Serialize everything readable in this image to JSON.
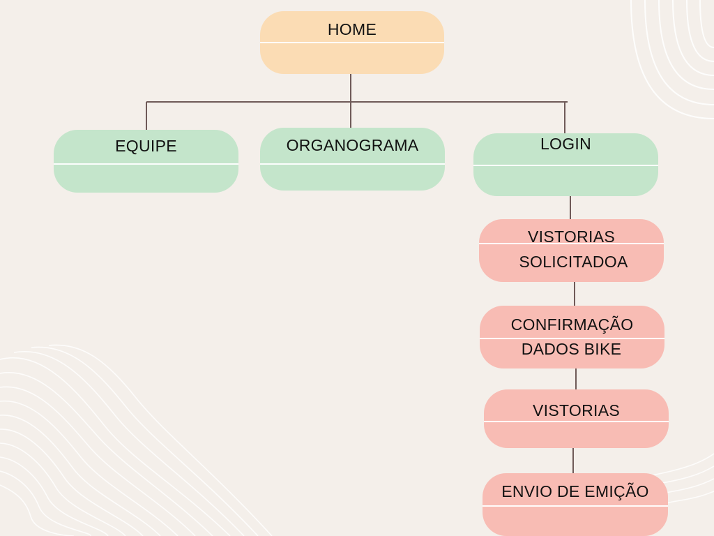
{
  "colors": {
    "background": "#f4efea",
    "root_fill": "#fbdcb4",
    "section_fill": "#c4e5cb",
    "flow_fill": "#f8bcb4",
    "connector": "#6f5a58"
  },
  "nodes": {
    "home": {
      "lines": [
        "HOME"
      ]
    },
    "equipe": {
      "lines": [
        "EQUIPE"
      ]
    },
    "organograma": {
      "lines": [
        "ORGANOGRAMA"
      ]
    },
    "login": {
      "lines": [
        "LOGIN"
      ]
    },
    "vistorias_solicitadoa": {
      "lines": [
        "VISTORIAS",
        "SOLICITADOA"
      ]
    },
    "confirmacao": {
      "lines": [
        "CONFIRMAÇÃO",
        "DADOS BIKE"
      ]
    },
    "vistorias": {
      "lines": [
        "VISTORIAS"
      ]
    },
    "envio": {
      "lines": [
        "ENVIO DE EMIÇÃO"
      ]
    }
  }
}
